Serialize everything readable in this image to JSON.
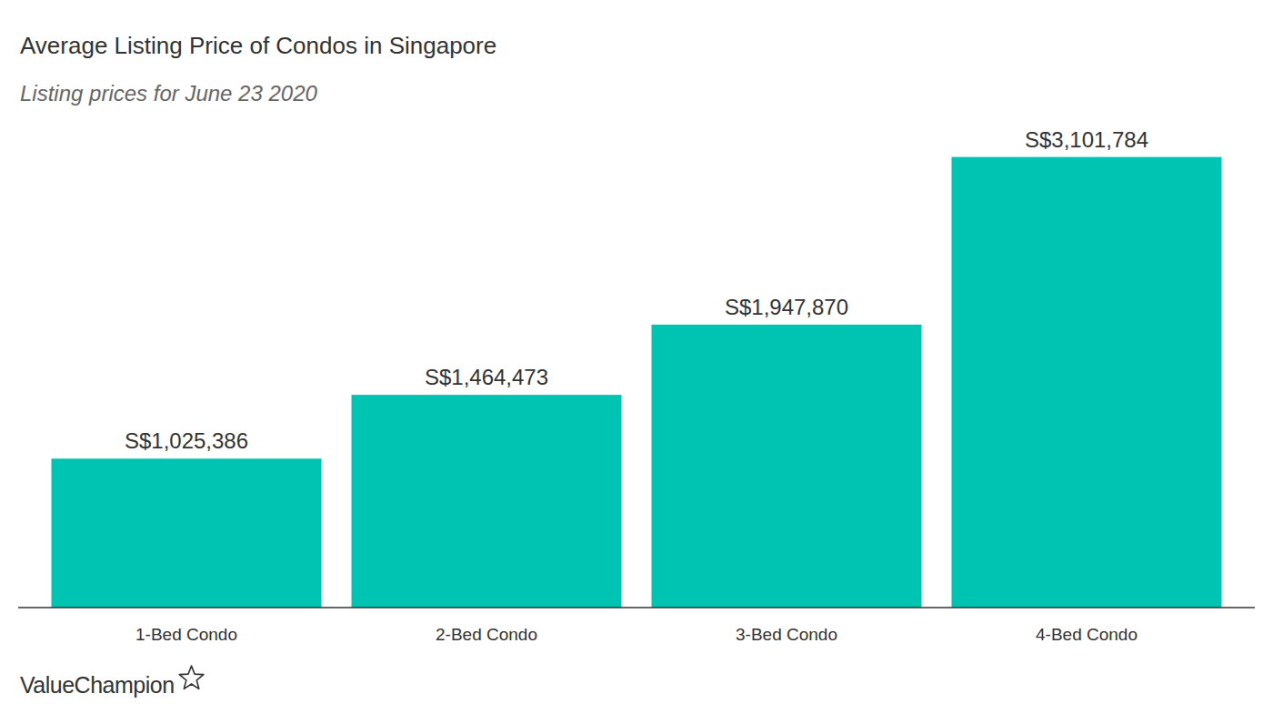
{
  "chart_data": {
    "type": "bar",
    "title": "Average Listing Price of Condos in Singapore",
    "subtitle": "Listing prices for June 23 2020",
    "categories": [
      "1-Bed Condo",
      "2-Bed Condo",
      "3-Bed Condo",
      "4-Bed Condo"
    ],
    "values": [
      1025386,
      1464473,
      1947870,
      3101784
    ],
    "value_labels": [
      "S$1,025,386",
      "S$1,464,473",
      "S$1,947,870",
      "S$3,101,784"
    ],
    "color": "#00c4b2",
    "ylim": [
      0,
      3500000
    ],
    "yticks": [],
    "grid": false,
    "data_labels": true,
    "tick_labels": "x",
    "annotations": [
      "ValueChampion"
    ]
  }
}
